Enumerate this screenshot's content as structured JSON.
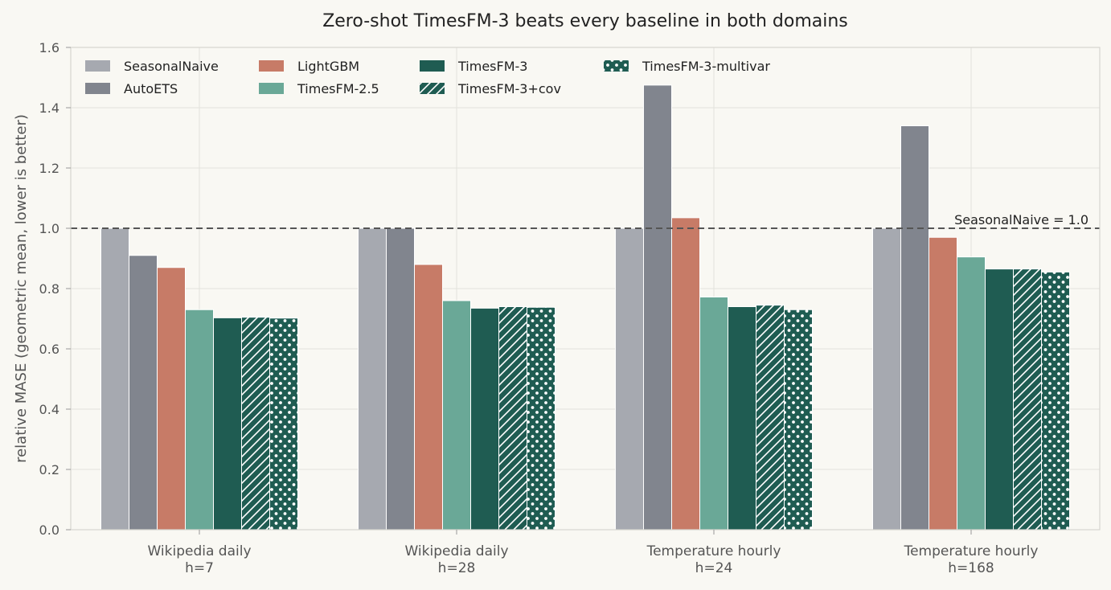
{
  "chart_data": {
    "type": "bar",
    "title": "Zero-shot TimesFM-3 beats every baseline in both domains",
    "xlabel": "",
    "ylabel": "relative MASE  (geometric mean, lower is better)",
    "ylim": [
      0,
      1.6
    ],
    "yticks": [
      0.0,
      0.2,
      0.4,
      0.6,
      0.8,
      1.0,
      1.2,
      1.4,
      1.6
    ],
    "ytick_labels": [
      "0.0",
      "0.2",
      "0.4",
      "0.6",
      "0.8",
      "1.0",
      "1.2",
      "1.4",
      "1.6"
    ],
    "grid": true,
    "legend_position": "top-left",
    "categories": [
      [
        "Wikipedia daily",
        "h=7"
      ],
      [
        "Wikipedia daily",
        "h=28"
      ],
      [
        "Temperature hourly",
        "h=24"
      ],
      [
        "Temperature hourly",
        "h=168"
      ]
    ],
    "series": [
      {
        "name": "SeasonalNaive",
        "color": "#a6a9b0",
        "pattern": "none",
        "values": [
          1.0,
          1.0,
          1.0,
          1.0
        ]
      },
      {
        "name": "AutoETS",
        "color": "#81858e",
        "pattern": "none",
        "values": [
          0.91,
          1.0,
          1.475,
          1.34
        ]
      },
      {
        "name": "LightGBM",
        "color": "#c77b67",
        "pattern": "none",
        "values": [
          0.87,
          0.88,
          1.035,
          0.97
        ]
      },
      {
        "name": "TimesFM-2.5",
        "color": "#6aa897",
        "pattern": "none",
        "values": [
          0.73,
          0.76,
          0.772,
          0.905
        ]
      },
      {
        "name": "TimesFM-3",
        "color": "#1f5c52",
        "pattern": "none",
        "values": [
          0.703,
          0.735,
          0.74,
          0.865
        ]
      },
      {
        "name": "TimesFM-3+cov",
        "color": "#1f5c52",
        "pattern": "hatch",
        "values": [
          0.705,
          0.74,
          0.745,
          0.865
        ]
      },
      {
        "name": "TimesFM-3-multivar",
        "color": "#1f5c52",
        "pattern": "dots",
        "values": [
          0.702,
          0.738,
          0.73,
          0.855
        ]
      }
    ],
    "reference_line": {
      "value": 1.0,
      "label": "SeasonalNaive = 1.0",
      "style": "dashed"
    }
  }
}
